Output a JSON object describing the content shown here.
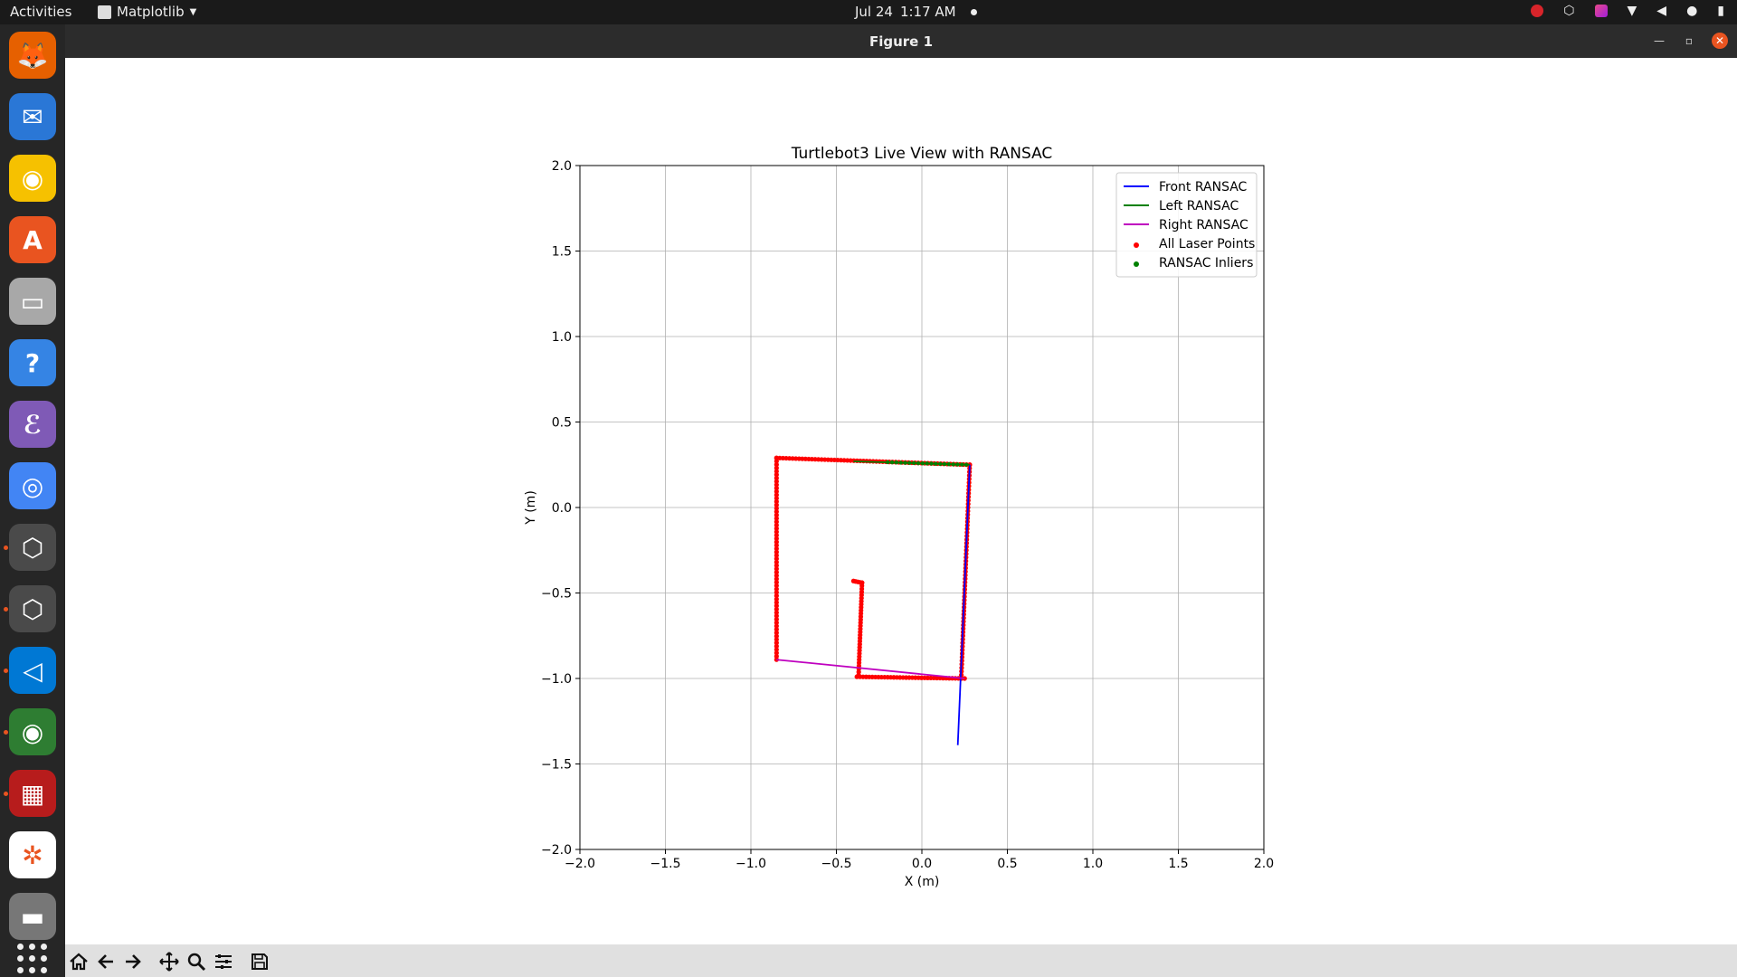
{
  "topbar": {
    "activities": "Activities",
    "app_name": "Matplotlib",
    "date": "Jul 24",
    "time": "1:17 AM"
  },
  "dock": {
    "items": [
      {
        "name": "firefox-icon",
        "color": "#e66000"
      },
      {
        "name": "thunderbird-icon",
        "color": "#2a77d6"
      },
      {
        "name": "rhythmbox-icon",
        "color": "#f6c100"
      },
      {
        "name": "app-center-icon",
        "color": "#e95420"
      },
      {
        "name": "files-icon",
        "color": "#a8a8a8"
      },
      {
        "name": "help-icon",
        "color": "#3584e4"
      },
      {
        "name": "emacs-icon",
        "color": "#7f5ab6"
      },
      {
        "name": "chrome-icon",
        "color": "#4285f4"
      },
      {
        "name": "unity-hub-icon",
        "color": "#4a4a4a"
      },
      {
        "name": "unity-editor-icon",
        "color": "#4a4a4a"
      },
      {
        "name": "vscode-icon",
        "color": "#0078d4"
      },
      {
        "name": "camera-app-icon",
        "color": "#2e7d32"
      },
      {
        "name": "terminal-grid-icon",
        "color": "#b71c1c"
      },
      {
        "name": "rviz-icon",
        "color": "#ffffff"
      },
      {
        "name": "drive-icon",
        "color": "#777777"
      }
    ]
  },
  "window": {
    "title": "Figure 1"
  },
  "chart_data": {
    "type": "scatter",
    "title": "Turtlebot3 Live View with RANSAC",
    "xlabel": "X (m)",
    "ylabel": "Y (m)",
    "xlim": [
      -2.0,
      2.0
    ],
    "ylim": [
      -2.0,
      2.0
    ],
    "grid": true,
    "legend_position": "top-right",
    "xticks": [
      "−2.0",
      "−1.5",
      "−1.0",
      "−0.5",
      "0.0",
      "0.5",
      "1.0",
      "1.5",
      "2.0"
    ],
    "yticks": [
      "−2.0",
      "−1.5",
      "−1.0",
      "−0.5",
      "0.0",
      "0.5",
      "1.0",
      "1.5",
      "2.0"
    ],
    "legend": [
      {
        "label": "Front RANSAC",
        "kind": "line",
        "color": "#0000ff"
      },
      {
        "label": "Left RANSAC",
        "kind": "line",
        "color": "#008000"
      },
      {
        "label": "Right RANSAC",
        "kind": "line",
        "color": "#bf00bf"
      },
      {
        "label": "All Laser Points",
        "kind": "dot",
        "color": "#ff0000"
      },
      {
        "label": "RANSAC Inliers",
        "kind": "dot",
        "color": "#008000"
      }
    ],
    "lines": [
      {
        "name": "Front RANSAC",
        "color": "#0000ff",
        "points": [
          [
            0.21,
            -1.39
          ],
          [
            0.28,
            0.25
          ]
        ]
      },
      {
        "name": "Left RANSAC",
        "color": "#008000",
        "points": [
          [
            -0.4,
            0.27
          ],
          [
            0.28,
            0.25
          ]
        ]
      },
      {
        "name": "Right RANSAC",
        "color": "#bf00bf",
        "points": [
          [
            -0.85,
            -0.89
          ],
          [
            0.25,
            -1.0
          ]
        ]
      }
    ],
    "laser_segments": [
      {
        "from": [
          -0.85,
          0.29
        ],
        "to": [
          -0.85,
          -0.89
        ],
        "n": 60
      },
      {
        "from": [
          -0.85,
          0.29
        ],
        "to": [
          0.28,
          0.25
        ],
        "n": 60
      },
      {
        "from": [
          0.28,
          0.25
        ],
        "to": [
          0.23,
          -1.0
        ],
        "n": 60
      },
      {
        "from": [
          -0.38,
          -0.99
        ],
        "to": [
          0.25,
          -1.0
        ],
        "n": 35
      },
      {
        "from": [
          -0.35,
          -0.44
        ],
        "to": [
          -0.37,
          -0.98
        ],
        "n": 30
      },
      {
        "from": [
          -0.4,
          -0.43
        ],
        "to": [
          -0.35,
          -0.44
        ],
        "n": 4
      }
    ],
    "inlier_segments": [
      {
        "from": [
          -0.2,
          0.265
        ],
        "to": [
          0.26,
          0.25
        ],
        "n": 18
      }
    ]
  }
}
